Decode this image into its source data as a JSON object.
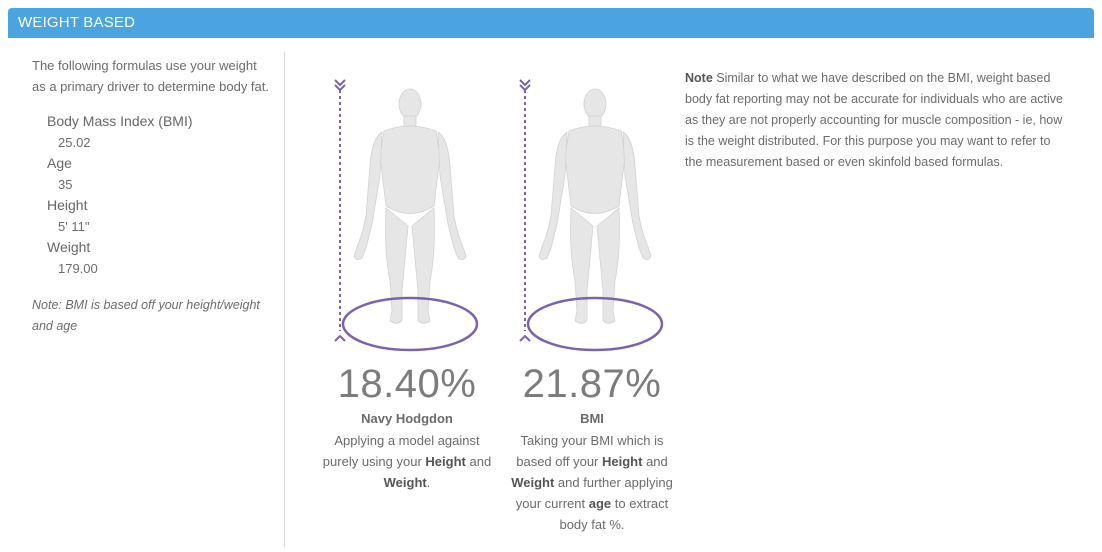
{
  "header": {
    "title": "WEIGHT BASED"
  },
  "intro": "The following formulas use your weight as a primary driver to determine body fat.",
  "metrics": [
    {
      "label": "Body Mass Index (BMI)",
      "value": "25.02"
    },
    {
      "label": "Age",
      "value": "35"
    },
    {
      "label": "Height",
      "value": "5' 11\""
    },
    {
      "label": "Weight",
      "value": "179.00"
    }
  ],
  "left_note": "Note: BMI is based off your height/weight and age",
  "figures": [
    {
      "value": "18.40%",
      "name": "Navy Hodgdon",
      "desc": [
        {
          "t": "Applying a model against purely using your "
        },
        {
          "b": "Height"
        },
        {
          "t": " and "
        },
        {
          "b": "Weight"
        },
        {
          "t": "."
        }
      ]
    },
    {
      "value": "21.87%",
      "name": "BMI",
      "desc": [
        {
          "t": "Taking your BMI which is based off your "
        },
        {
          "b": "Height"
        },
        {
          "t": " and "
        },
        {
          "b": "Weight"
        },
        {
          "t": " and further applying your current "
        },
        {
          "b": "age"
        },
        {
          "t": " to extract body fat %."
        }
      ]
    }
  ],
  "note": {
    "lead": "Note",
    "text": " Similar to what we have described on the BMI, weight based body fat reporting may not be accurate for individuals who are active as they are not properly accounting for muscle composition - ie, how is the weight distributed. For this purpose you may want to refer to the measurement based or even skinfold based formulas."
  },
  "colors": {
    "header": "#4ba3e0",
    "accent": "#7b62ad",
    "figure": "#e4e4e4"
  }
}
